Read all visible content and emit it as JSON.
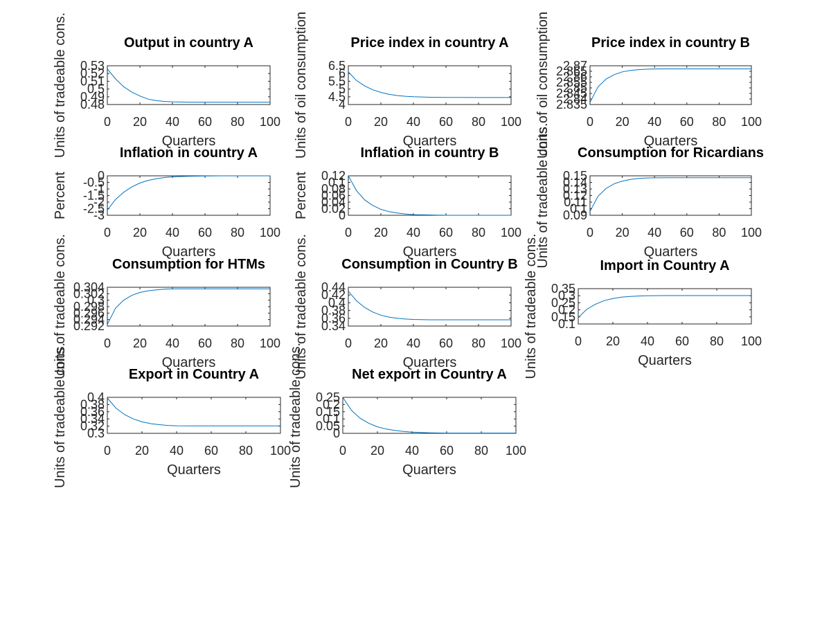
{
  "chart_data": [
    {
      "type": "line",
      "title": "Output in country A",
      "xlabel": "Quarters",
      "ylabel": "Units of tradeable cons.",
      "xlim": [
        0,
        100
      ],
      "ylim": [
        0.48,
        0.53
      ],
      "xticks": [
        "0",
        "20",
        "40",
        "60",
        "80",
        "100"
      ],
      "yticks": [
        "0.53",
        "0.52",
        "0.51",
        "0.5",
        "0.49",
        "0.48"
      ],
      "series": [
        {
          "x": [
            0,
            5,
            10,
            15,
            20,
            25,
            30,
            35,
            40,
            50,
            60,
            70,
            80,
            90,
            100
          ],
          "values": [
            0.526,
            0.513,
            0.503,
            0.496,
            0.491,
            0.487,
            0.485,
            0.484,
            0.4835,
            0.483,
            0.483,
            0.483,
            0.483,
            0.483,
            0.483
          ]
        }
      ]
    },
    {
      "type": "line",
      "title": "Price index in country A",
      "xlabel": "Quarters",
      "ylabel": "Units of oil consumption",
      "xlim": [
        0,
        100
      ],
      "ylim": [
        4,
        6.5
      ],
      "xticks": [
        "0",
        "20",
        "40",
        "60",
        "80",
        "100"
      ],
      "yticks": [
        "6.5",
        "6",
        "5.5",
        "5",
        "4.5",
        "4"
      ],
      "series": [
        {
          "x": [
            0,
            5,
            10,
            15,
            20,
            25,
            30,
            35,
            40,
            50,
            60,
            70,
            80,
            90,
            100
          ],
          "values": [
            6.1,
            5.55,
            5.2,
            4.95,
            4.78,
            4.66,
            4.58,
            4.53,
            4.5,
            4.47,
            4.46,
            4.455,
            4.45,
            4.45,
            4.45
          ]
        }
      ]
    },
    {
      "type": "line",
      "title": "Price index in country B",
      "xlabel": "Quarters",
      "ylabel": "Units of oil consumption",
      "xlim": [
        0,
        100
      ],
      "ylim": [
        2.835,
        2.87
      ],
      "xticks": [
        "0",
        "20",
        "40",
        "60",
        "80",
        "100"
      ],
      "yticks": [
        "2.87",
        "2.865",
        "2.86",
        "2.855",
        "2.85",
        "2.845",
        "2.84",
        "2.835"
      ],
      "series": [
        {
          "x": [
            0,
            5,
            10,
            15,
            20,
            25,
            30,
            35,
            40,
            50,
            60,
            70,
            80,
            90,
            100
          ],
          "values": [
            2.837,
            2.851,
            2.858,
            2.862,
            2.8645,
            2.8658,
            2.8665,
            2.8669,
            2.8671,
            2.8672,
            2.8672,
            2.8672,
            2.8672,
            2.8672,
            2.8672
          ]
        }
      ]
    },
    {
      "type": "line",
      "title": "Inflation in country A",
      "xlabel": "Quarters",
      "ylabel": "Percent",
      "xlim": [
        0,
        100
      ],
      "ylim": [
        -3,
        0
      ],
      "xticks": [
        "0",
        "20",
        "40",
        "60",
        "80",
        "100"
      ],
      "yticks": [
        "0",
        "-0.5",
        "-1",
        "-1.5",
        "-2",
        "-2.5",
        "-3"
      ],
      "series": [
        {
          "x": [
            0,
            5,
            10,
            15,
            20,
            25,
            30,
            35,
            40,
            50,
            60,
            70,
            80,
            90,
            100
          ],
          "values": [
            -2.6,
            -1.8,
            -1.25,
            -0.85,
            -0.55,
            -0.35,
            -0.22,
            -0.13,
            -0.08,
            -0.03,
            -0.01,
            0,
            0,
            0,
            0
          ]
        }
      ]
    },
    {
      "type": "line",
      "title": "Inflation in country B",
      "xlabel": "Quarters",
      "ylabel": "Percent",
      "xlim": [
        0,
        100
      ],
      "ylim": [
        0,
        0.12
      ],
      "xticks": [
        "0",
        "20",
        "40",
        "60",
        "80",
        "100"
      ],
      "yticks": [
        "0.12",
        "0.1",
        "0.08",
        "0.06",
        "0.04",
        "0.02",
        "0"
      ],
      "series": [
        {
          "x": [
            0,
            5,
            10,
            15,
            20,
            25,
            30,
            35,
            40,
            50,
            60,
            70,
            80,
            90,
            100
          ],
          "values": [
            0.12,
            0.075,
            0.047,
            0.03,
            0.018,
            0.011,
            0.007,
            0.004,
            0.002,
            0.001,
            0,
            0,
            0,
            0,
            0
          ]
        }
      ]
    },
    {
      "type": "line",
      "title": "Consumption for Ricardians",
      "xlabel": "Quarters",
      "ylabel": "Units of tradeable cons.",
      "xlim": [
        0,
        100
      ],
      "ylim": [
        0.09,
        0.15
      ],
      "xticks": [
        "0",
        "20",
        "40",
        "60",
        "80",
        "100"
      ],
      "yticks": [
        "0.15",
        "0.14",
        "0.13",
        "0.12",
        "0.11",
        "0.1",
        "0.09"
      ],
      "series": [
        {
          "x": [
            0,
            5,
            10,
            15,
            20,
            25,
            30,
            35,
            40,
            50,
            60,
            70,
            80,
            90,
            100
          ],
          "values": [
            0.096,
            0.119,
            0.131,
            0.138,
            0.142,
            0.1445,
            0.146,
            0.1467,
            0.147,
            0.1472,
            0.1472,
            0.1472,
            0.1472,
            0.1472,
            0.1472
          ]
        }
      ]
    },
    {
      "type": "line",
      "title": "Consumption for HTMs",
      "xlabel": "Quarters",
      "ylabel": "Units of tradeable cons.",
      "xlim": [
        0,
        100
      ],
      "ylim": [
        0.292,
        0.304
      ],
      "xticks": [
        "0",
        "20",
        "40",
        "60",
        "80",
        "100"
      ],
      "yticks": [
        "0.304",
        "0.302",
        "0.3",
        "0.298",
        "0.296",
        "0.294",
        "0.292"
      ],
      "series": [
        {
          "x": [
            0,
            5,
            10,
            15,
            20,
            25,
            30,
            35,
            40,
            50,
            60,
            70,
            80,
            90,
            100
          ],
          "values": [
            0.2925,
            0.2975,
            0.3,
            0.3015,
            0.3024,
            0.3029,
            0.3032,
            0.3034,
            0.3035,
            0.3035,
            0.3035,
            0.3035,
            0.3035,
            0.3035,
            0.3035
          ]
        }
      ]
    },
    {
      "type": "line",
      "title": "Consumption in Country B",
      "xlabel": "Quarters",
      "ylabel": "Units of tradeable cons.",
      "xlim": [
        0,
        100
      ],
      "ylim": [
        0.34,
        0.44
      ],
      "xticks": [
        "0",
        "20",
        "40",
        "60",
        "80",
        "100"
      ],
      "yticks": [
        "0.44",
        "0.42",
        "0.4",
        "0.38",
        "0.36",
        "0.34"
      ],
      "series": [
        {
          "x": [
            0,
            5,
            10,
            15,
            20,
            25,
            30,
            35,
            40,
            50,
            60,
            70,
            80,
            90,
            100
          ],
          "values": [
            0.43,
            0.405,
            0.388,
            0.376,
            0.368,
            0.363,
            0.36,
            0.358,
            0.357,
            0.356,
            0.356,
            0.356,
            0.356,
            0.356,
            0.356
          ]
        }
      ]
    },
    {
      "type": "line",
      "title": "Import in Country A",
      "xlabel": "Quarters",
      "ylabel": "Units of tradeable cons.",
      "xlim": [
        0,
        100
      ],
      "ylim": [
        0.1,
        0.35
      ],
      "xticks": [
        "0",
        "20",
        "40",
        "60",
        "80",
        "100"
      ],
      "yticks": [
        "0.35",
        "0.3",
        "0.25",
        "0.2",
        "0.15",
        "0.1"
      ],
      "series": [
        {
          "x": [
            0,
            5,
            10,
            15,
            20,
            25,
            30,
            35,
            40,
            50,
            60,
            70,
            80,
            90,
            100
          ],
          "values": [
            0.145,
            0.205,
            0.24,
            0.265,
            0.28,
            0.29,
            0.295,
            0.298,
            0.3,
            0.301,
            0.301,
            0.301,
            0.301,
            0.301,
            0.301
          ]
        }
      ]
    },
    {
      "type": "line",
      "title": "Export in Country A",
      "xlabel": "Quarters",
      "ylabel": "Units of tradeable cons.",
      "xlim": [
        0,
        100
      ],
      "ylim": [
        0.3,
        0.4
      ],
      "xticks": [
        "0",
        "20",
        "40",
        "60",
        "80",
        "100"
      ],
      "yticks": [
        "0.4",
        "0.38",
        "0.36",
        "0.34",
        "0.32",
        "0.3"
      ],
      "series": [
        {
          "x": [
            0,
            5,
            10,
            15,
            20,
            25,
            30,
            35,
            40,
            50,
            60,
            70,
            80,
            90,
            100
          ],
          "values": [
            0.398,
            0.37,
            0.352,
            0.34,
            0.332,
            0.327,
            0.324,
            0.322,
            0.321,
            0.3205,
            0.3205,
            0.3205,
            0.3205,
            0.3205,
            0.3205
          ]
        }
      ]
    },
    {
      "type": "line",
      "title": "Net export in Country A",
      "xlabel": "Quarters",
      "ylabel": "Units of tradeable cons.",
      "xlim": [
        0,
        100
      ],
      "ylim": [
        0,
        0.25
      ],
      "xticks": [
        "0",
        "20",
        "40",
        "60",
        "80",
        "100"
      ],
      "yticks": [
        "0.25",
        "0.2",
        "0.15",
        "0.1",
        "0.05",
        "0"
      ],
      "series": [
        {
          "x": [
            0,
            5,
            10,
            15,
            20,
            25,
            30,
            35,
            40,
            50,
            60,
            70,
            80,
            90,
            100
          ],
          "values": [
            0.25,
            0.16,
            0.105,
            0.07,
            0.045,
            0.03,
            0.02,
            0.013,
            0.008,
            0.004,
            0.002,
            0.002,
            0.002,
            0.002,
            0.002
          ]
        }
      ]
    }
  ],
  "colors": {
    "line": "#0072bd",
    "axes": "#262626",
    "title": "#000000"
  }
}
